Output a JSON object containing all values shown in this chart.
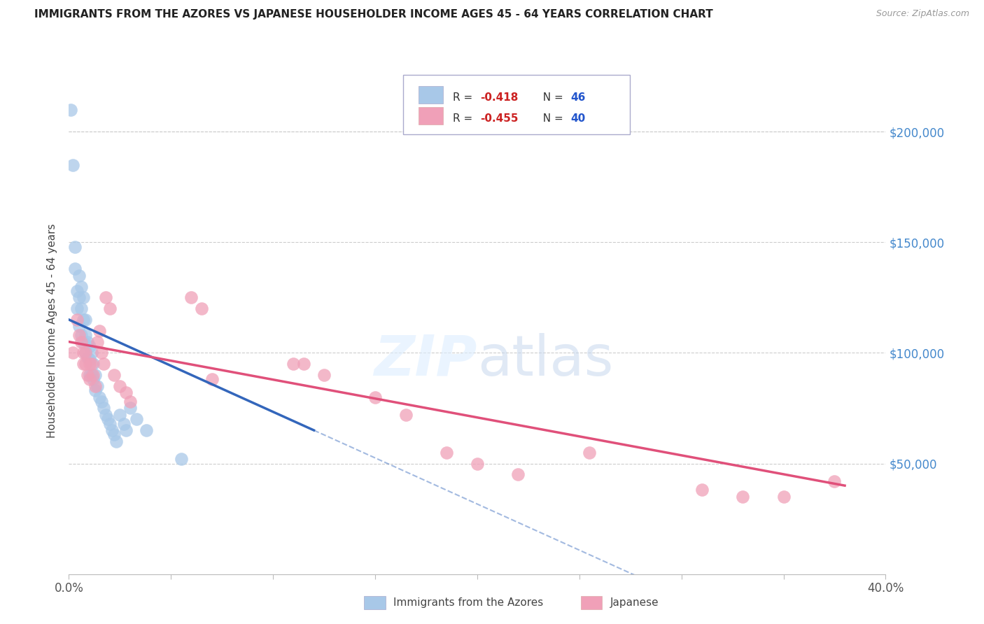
{
  "title": "IMMIGRANTS FROM THE AZORES VS JAPANESE HOUSEHOLDER INCOME AGES 45 - 64 YEARS CORRELATION CHART",
  "source": "Source: ZipAtlas.com",
  "ylabel": "Householder Income Ages 45 - 64 years",
  "xlim": [
    0.0,
    0.4
  ],
  "ylim": [
    0,
    220000
  ],
  "blue_color": "#a8c8e8",
  "pink_color": "#f0a0b8",
  "blue_line_color": "#3366bb",
  "pink_line_color": "#e0507a",
  "blue_label": "Immigrants from the Azores",
  "pink_label": "Japanese",
  "r_blue": "-0.418",
  "n_blue": "46",
  "r_pink": "-0.455",
  "n_pink": "40",
  "watermark": "ZIPatlas",
  "blue_x": [
    0.001,
    0.002,
    0.003,
    0.003,
    0.004,
    0.004,
    0.005,
    0.005,
    0.005,
    0.006,
    0.006,
    0.006,
    0.007,
    0.007,
    0.007,
    0.008,
    0.008,
    0.008,
    0.009,
    0.009,
    0.01,
    0.01,
    0.01,
    0.011,
    0.011,
    0.012,
    0.012,
    0.013,
    0.013,
    0.014,
    0.015,
    0.016,
    0.017,
    0.018,
    0.019,
    0.02,
    0.021,
    0.022,
    0.023,
    0.025,
    0.027,
    0.028,
    0.03,
    0.033,
    0.038,
    0.055
  ],
  "blue_y": [
    210000,
    185000,
    148000,
    138000,
    128000,
    120000,
    135000,
    125000,
    112000,
    130000,
    120000,
    108000,
    125000,
    115000,
    105000,
    115000,
    108000,
    100000,
    105000,
    98000,
    103000,
    97000,
    90000,
    100000,
    90000,
    95000,
    88000,
    90000,
    83000,
    85000,
    80000,
    78000,
    75000,
    72000,
    70000,
    68000,
    65000,
    63000,
    60000,
    72000,
    68000,
    65000,
    75000,
    70000,
    65000,
    52000
  ],
  "pink_x": [
    0.002,
    0.004,
    0.005,
    0.006,
    0.007,
    0.007,
    0.008,
    0.008,
    0.009,
    0.01,
    0.01,
    0.011,
    0.012,
    0.013,
    0.014,
    0.015,
    0.016,
    0.017,
    0.018,
    0.02,
    0.022,
    0.025,
    0.028,
    0.03,
    0.06,
    0.065,
    0.07,
    0.11,
    0.115,
    0.125,
    0.15,
    0.165,
    0.185,
    0.2,
    0.22,
    0.255,
    0.31,
    0.33,
    0.35,
    0.375
  ],
  "pink_y": [
    100000,
    115000,
    108000,
    105000,
    100000,
    95000,
    100000,
    95000,
    90000,
    95000,
    88000,
    95000,
    90000,
    85000,
    105000,
    110000,
    100000,
    95000,
    125000,
    120000,
    90000,
    85000,
    82000,
    78000,
    125000,
    120000,
    88000,
    95000,
    95000,
    90000,
    80000,
    72000,
    55000,
    50000,
    45000,
    55000,
    38000,
    35000,
    35000,
    42000
  ],
  "blue_line_x0": 0.0,
  "blue_line_y0": 115000,
  "blue_line_x1": 0.12,
  "blue_line_y1": 65000,
  "pink_line_x0": 0.0,
  "pink_line_y0": 105000,
  "pink_line_x1": 0.38,
  "pink_line_y1": 40000
}
